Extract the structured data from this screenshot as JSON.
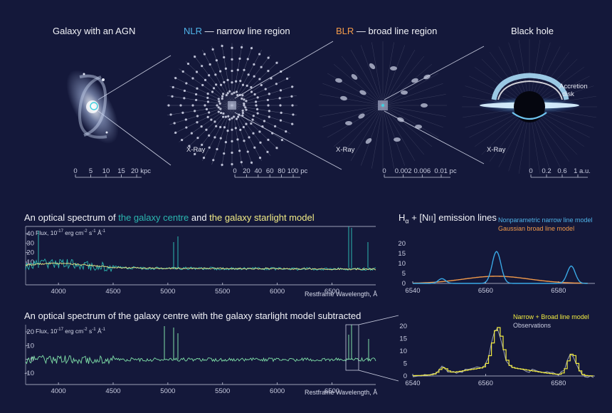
{
  "top_panels": {
    "galaxy": {
      "title": "Galaxy with an AGN",
      "scale_ticks": [
        "0",
        "5",
        "10",
        "15",
        "20"
      ],
      "scale_unit": "kpc"
    },
    "nlr": {
      "abbr": "NLR",
      "title_rest": "— narrow line region",
      "xray": "X-Ray",
      "scale_ticks": [
        "0",
        "20",
        "40",
        "60",
        "80",
        "100"
      ],
      "scale_unit": "pc"
    },
    "blr": {
      "abbr": "BLR",
      "title_rest": "— broad line region",
      "xray": "X-Ray",
      "scale_ticks": [
        "0",
        "0.002",
        "0.006",
        "0.01"
      ],
      "scale_unit": "pc"
    },
    "bh": {
      "title": "Black hole",
      "disk_label_1": "Accretion",
      "disk_label_2": "disk",
      "xray": "X-Ray",
      "scale_ticks": [
        "0",
        "0.2",
        "0.6",
        "1"
      ],
      "scale_unit": "a.u."
    }
  },
  "spectrum1": {
    "title_a": "An optical spectrum of ",
    "title_b": "the galaxy centre",
    "title_c": " and ",
    "title_d": "the galaxy starlight model",
    "ylabel": "Flux, 10",
    "ylabel_exp": "-17",
    "ylabel_units": " erg cm",
    "ylabel_units_exp": "-2",
    "ylabel_units2": " s",
    "ylabel_units2_exp": "-1",
    "ylabel_units3": " Å",
    "ylabel_units3_exp": "-1",
    "xlabel": "Restframe Wavelength, Å",
    "y_ticks": [
      "40",
      "30",
      "20",
      "10"
    ],
    "x_ticks": [
      "4000",
      "4500",
      "5000",
      "5500",
      "6000",
      "6500"
    ]
  },
  "spectrum2": {
    "title": "An optical spectrum of the galaxy centre with the galaxy starlight model subtracted",
    "ylabel": "Flux, 10",
    "ylabel_exp": "-17",
    "ylabel_units": " erg cm",
    "ylabel_units_exp": "-2",
    "ylabel_units2": " s",
    "ylabel_units2_exp": "-1",
    "ylabel_units3": " Å",
    "ylabel_units3_exp": "-1",
    "xlabel": "Restframe Wavelength, Å",
    "y_ticks": [
      "20",
      "10",
      "0",
      "-10"
    ],
    "x_ticks": [
      "4000",
      "4500",
      "5000",
      "5500",
      "6000",
      "6500"
    ]
  },
  "emission": {
    "title_a": "H",
    "title_alpha": "α",
    "title_b": " + [N",
    "title_ii": "II",
    "title_c": "] emission lines",
    "legend_narrow": "Nonparametric narrow line model",
    "legend_broad": "Gaussian broad line model",
    "y_ticks": [
      "20",
      "15",
      "10",
      "5",
      "0"
    ],
    "x_ticks": [
      "6540",
      "6560",
      "6580"
    ]
  },
  "fit": {
    "legend_model": "Narrow + Broad line model",
    "legend_obs": "Observations",
    "y_ticks": [
      "20",
      "15",
      "10",
      "5",
      "0"
    ],
    "x_ticks": [
      "6540",
      "6560",
      "6580"
    ]
  },
  "colors": {
    "background": "#14183a",
    "teal": "#2bb7b0",
    "yellow": "#f2ec86",
    "blue": "#4fb3e8",
    "orange": "#f29a4a"
  }
}
